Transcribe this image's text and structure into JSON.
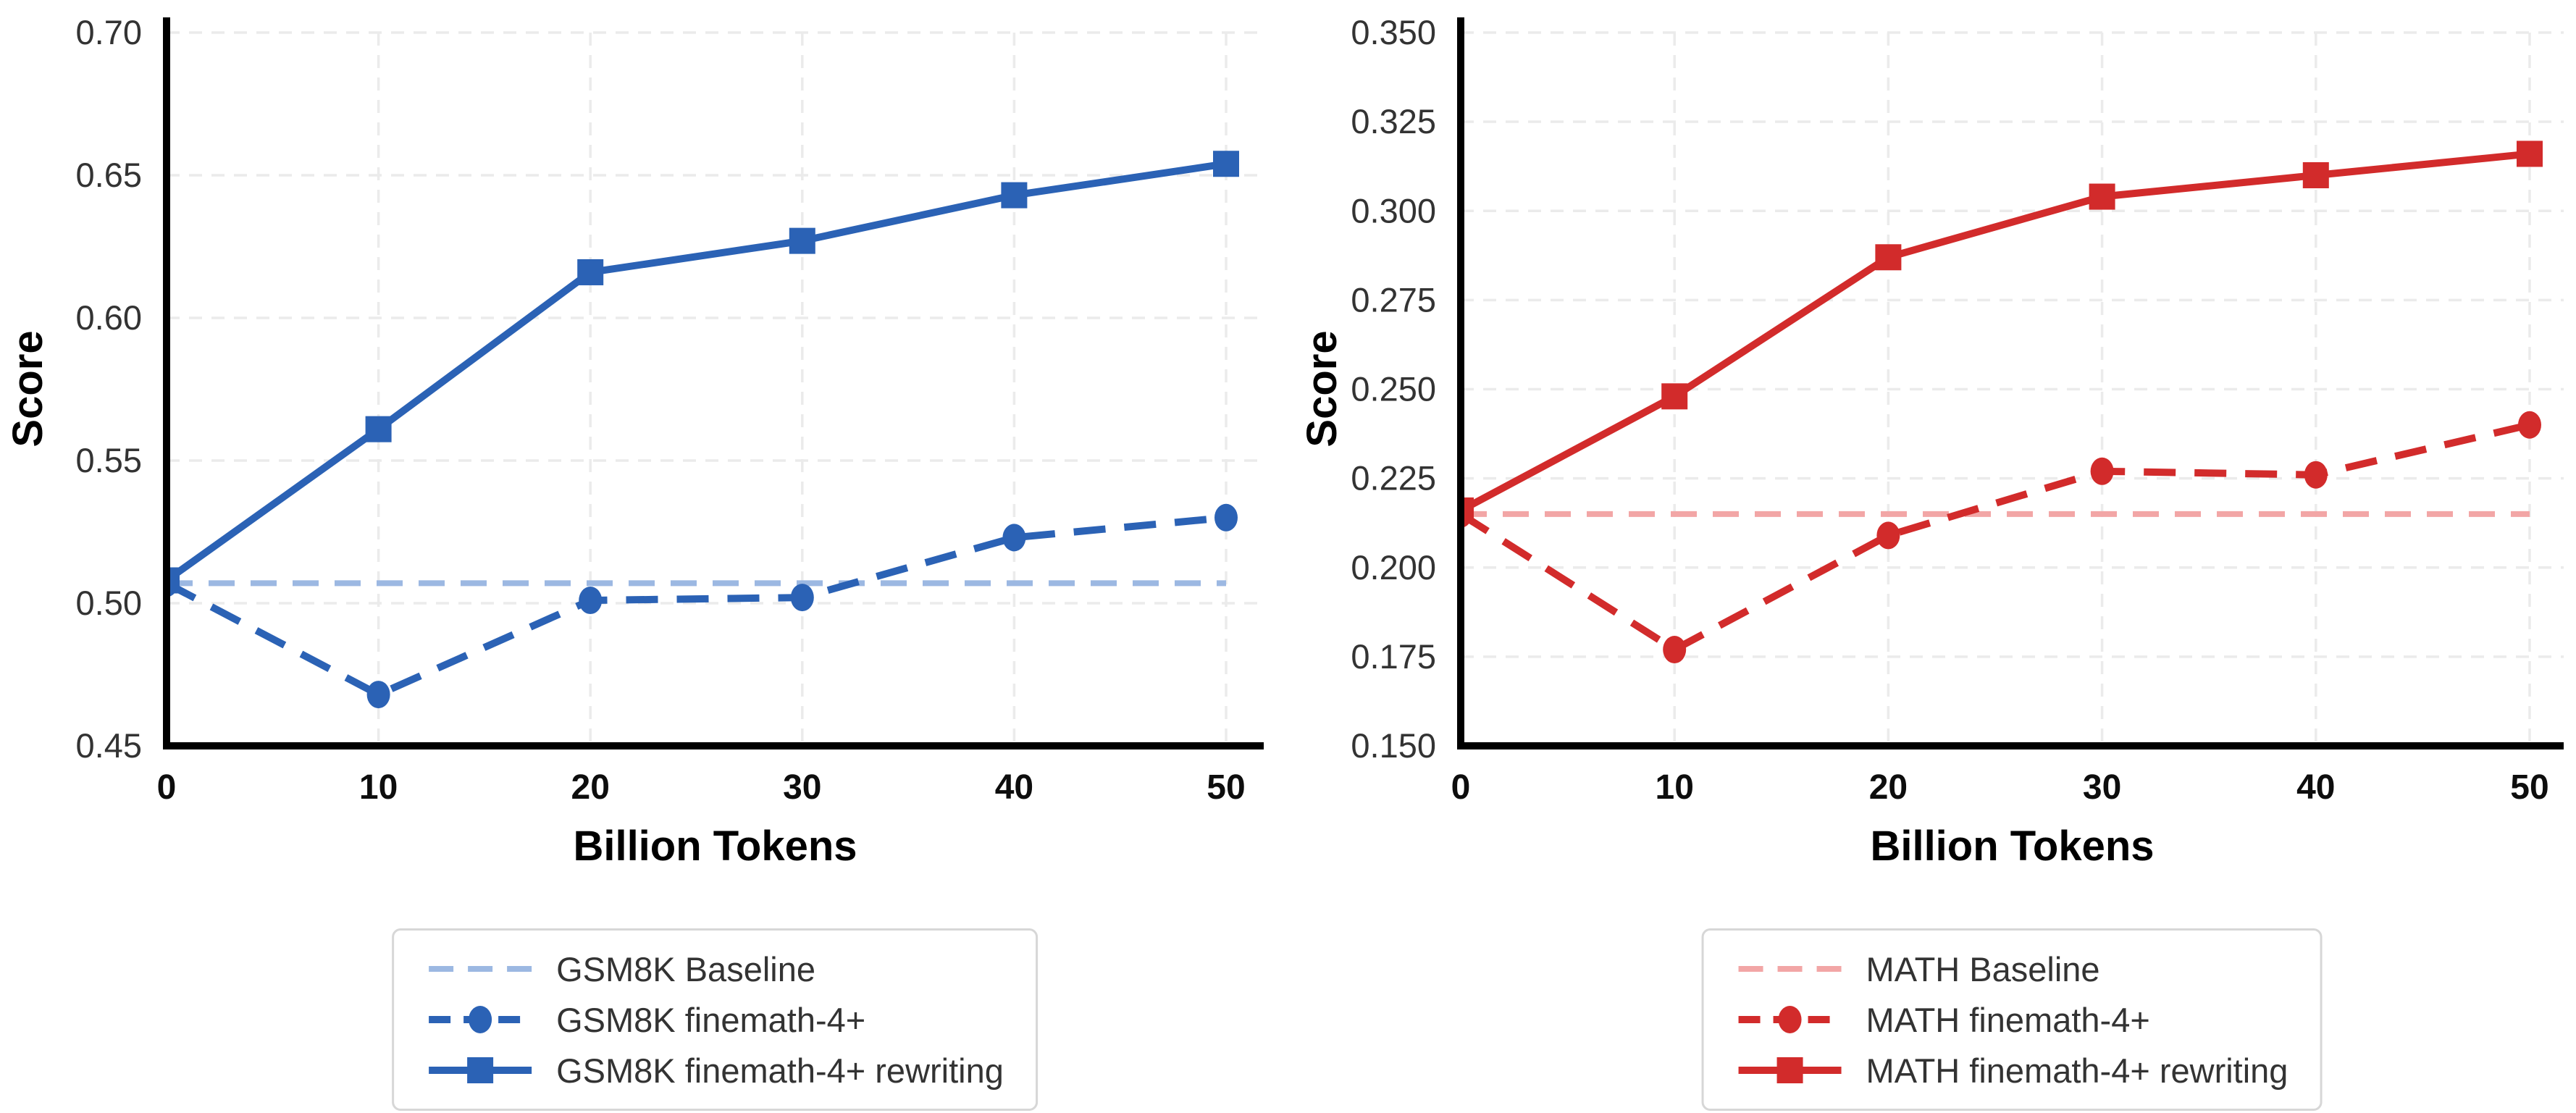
{
  "figure": {
    "background": "#ffffff",
    "gridline_color": "#ebebeb",
    "spine_color": "#000000"
  },
  "chart_data": [
    {
      "type": "line",
      "title": "",
      "xlabel": "Billion Tokens",
      "ylabel": "Score",
      "x": [
        0,
        10,
        20,
        30,
        40,
        50
      ],
      "x_tick_labels": [
        "0",
        "10",
        "20",
        "30",
        "40",
        "50"
      ],
      "xlim": [
        0,
        50
      ],
      "ylim": [
        0.45,
        0.7
      ],
      "y_ticks": [
        0.45,
        0.5,
        0.55,
        0.6,
        0.65,
        0.7
      ],
      "y_tick_labels": [
        "0.45",
        "0.50",
        "0.55",
        "0.60",
        "0.65",
        "0.70"
      ],
      "grid": true,
      "legend_position": "below",
      "series": [
        {
          "name": "GSM8K Baseline",
          "style": "dashed",
          "marker": "none",
          "color": "#9cb8e2",
          "values": [
            0.507,
            0.507,
            0.507,
            0.507,
            0.507,
            0.507
          ]
        },
        {
          "name": "GSM8K finemath-4+",
          "style": "dashed",
          "marker": "circle",
          "color": "#2b62b5",
          "values": [
            0.507,
            0.468,
            0.501,
            0.502,
            0.523,
            0.53
          ]
        },
        {
          "name": "GSM8K finemath-4+ rewriting",
          "style": "solid",
          "marker": "square",
          "color": "#2b62b5",
          "values": [
            0.508,
            0.561,
            0.616,
            0.627,
            0.643,
            0.654
          ]
        }
      ]
    },
    {
      "type": "line",
      "title": "",
      "xlabel": "Billion Tokens",
      "ylabel": "Score",
      "x": [
        0,
        10,
        20,
        30,
        40,
        50
      ],
      "x_tick_labels": [
        "0",
        "10",
        "20",
        "30",
        "40",
        "50"
      ],
      "xlim": [
        0,
        50
      ],
      "ylim": [
        0.15,
        0.35
      ],
      "y_ticks": [
        0.15,
        0.175,
        0.2,
        0.225,
        0.25,
        0.275,
        0.3,
        0.325,
        0.35
      ],
      "y_tick_labels": [
        "0.150",
        "0.175",
        "0.200",
        "0.225",
        "0.250",
        "0.275",
        "0.300",
        "0.325",
        "0.350"
      ],
      "grid": true,
      "legend_position": "below",
      "series": [
        {
          "name": "MATH Baseline",
          "style": "dashed",
          "marker": "none",
          "color": "#f2a6a6",
          "values": [
            0.215,
            0.215,
            0.215,
            0.215,
            0.215,
            0.215
          ]
        },
        {
          "name": "MATH finemath-4+",
          "style": "dashed",
          "marker": "circle",
          "color": "#d22b2b",
          "values": [
            0.215,
            0.177,
            0.209,
            0.227,
            0.226,
            0.24
          ]
        },
        {
          "name": "MATH finemath-4+ rewriting",
          "style": "solid",
          "marker": "square",
          "color": "#d22b2b",
          "values": [
            0.216,
            0.248,
            0.287,
            0.304,
            0.31,
            0.316
          ]
        }
      ]
    }
  ]
}
